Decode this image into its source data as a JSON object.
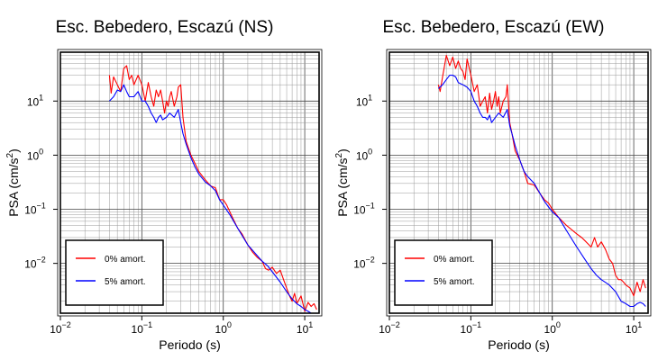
{
  "chart_data": [
    {
      "type": "line",
      "title": "Esc. Bebedero, Escazú (NS)",
      "xlabel": "Periodo (s)",
      "ylabel": "PSA (cm/s²)",
      "ylabel_base": "PSA (cm/s",
      "ylabel_sup": "2",
      "ylabel_end": ")",
      "xscale": "log",
      "yscale": "log",
      "xlim": [
        0.01,
        15
      ],
      "ylim": [
        0.0012,
        80
      ],
      "grid": true,
      "legend_position": "lower-left",
      "xticks": [
        {
          "base": "10",
          "exp": "−2",
          "value": 0.01
        },
        {
          "base": "10",
          "exp": "−1",
          "value": 0.1
        },
        {
          "base": "10",
          "exp": "0",
          "value": 1
        },
        {
          "base": "10",
          "exp": "1",
          "value": 10
        }
      ],
      "yticks": [
        {
          "base": "10",
          "exp": "−2",
          "value": 0.01
        },
        {
          "base": "10",
          "exp": "−1",
          "value": 0.1
        },
        {
          "base": "10",
          "exp": "0",
          "value": 1
        },
        {
          "base": "10",
          "exp": "1",
          "value": 10
        }
      ],
      "series": [
        {
          "name": "0% amort.",
          "color": "#ff0000",
          "x": [
            0.04,
            0.042,
            0.045,
            0.05,
            0.055,
            0.06,
            0.065,
            0.07,
            0.075,
            0.08,
            0.09,
            0.1,
            0.11,
            0.12,
            0.13,
            0.14,
            0.15,
            0.16,
            0.17,
            0.18,
            0.19,
            0.2,
            0.21,
            0.22,
            0.23,
            0.25,
            0.27,
            0.28,
            0.3,
            0.32,
            0.35,
            0.4,
            0.45,
            0.5,
            0.6,
            0.7,
            0.8,
            0.9,
            1.0,
            1.1,
            1.3,
            1.5,
            1.7,
            2.0,
            2.3,
            2.6,
            3.0,
            3.3,
            3.6,
            4.0,
            4.5,
            5.0,
            5.5,
            6.0,
            6.5,
            7.0,
            7.5,
            8.0,
            9.0,
            10.0,
            11.0,
            12.0,
            13.0,
            14.0
          ],
          "y": [
            30,
            14,
            28,
            20,
            15,
            40,
            45,
            25,
            30,
            20,
            30,
            20,
            10,
            22,
            12,
            8,
            16,
            12,
            16,
            10,
            6,
            10,
            8,
            12,
            15,
            8,
            12,
            18,
            20,
            5,
            1.8,
            1.0,
            0.7,
            0.5,
            0.35,
            0.27,
            0.25,
            0.15,
            0.15,
            0.12,
            0.07,
            0.045,
            0.035,
            0.022,
            0.016,
            0.013,
            0.011,
            0.008,
            0.0075,
            0.0085,
            0.0065,
            0.0075,
            0.005,
            0.0035,
            0.0025,
            0.002,
            0.0028,
            0.0018,
            0.0025,
            0.0013,
            0.0019,
            0.0016,
            0.0018,
            0.0014
          ]
        },
        {
          "name": "5% amort.",
          "color": "#0000ff",
          "x": [
            0.04,
            0.045,
            0.05,
            0.055,
            0.06,
            0.065,
            0.07,
            0.08,
            0.09,
            0.1,
            0.11,
            0.12,
            0.13,
            0.14,
            0.15,
            0.16,
            0.17,
            0.18,
            0.2,
            0.22,
            0.25,
            0.28,
            0.3,
            0.32,
            0.35,
            0.4,
            0.45,
            0.5,
            0.6,
            0.7,
            0.8,
            0.9,
            1.0,
            1.2,
            1.5,
            2.0,
            2.5,
            3.0,
            3.5,
            4.0,
            5.0,
            6.0,
            7.0,
            8.0,
            9.0,
            10.0,
            11.0,
            12.0,
            13.0,
            14.0
          ],
          "y": [
            10,
            12,
            16,
            15,
            20,
            15,
            12,
            12,
            15,
            10,
            10,
            8,
            6,
            5,
            4,
            5,
            5.5,
            4.5,
            5,
            6,
            5,
            7,
            4,
            2.5,
            1.6,
            0.9,
            0.6,
            0.45,
            0.32,
            0.27,
            0.22,
            0.15,
            0.12,
            0.08,
            0.045,
            0.022,
            0.015,
            0.011,
            0.009,
            0.007,
            0.0045,
            0.003,
            0.0022,
            0.0018,
            0.0016,
            0.0014,
            0.0013,
            0.0012,
            0.0012,
            0.0012
          ]
        }
      ]
    },
    {
      "type": "line",
      "title": "Esc. Bebedero, Escazú (EW)",
      "xlabel": "Periodo (s)",
      "ylabel": "PSA (cm/s²)",
      "ylabel_base": "PSA (cm/s",
      "ylabel_sup": "2",
      "ylabel_end": ")",
      "xscale": "log",
      "yscale": "log",
      "xlim": [
        0.01,
        15
      ],
      "ylim": [
        0.0012,
        80
      ],
      "grid": true,
      "legend_position": "lower-left",
      "xticks": [
        {
          "base": "10",
          "exp": "−2",
          "value": 0.01
        },
        {
          "base": "10",
          "exp": "−1",
          "value": 0.1
        },
        {
          "base": "10",
          "exp": "0",
          "value": 1
        },
        {
          "base": "10",
          "exp": "1",
          "value": 10
        }
      ],
      "yticks": [
        {
          "base": "10",
          "exp": "−2",
          "value": 0.01
        },
        {
          "base": "10",
          "exp": "−1",
          "value": 0.1
        },
        {
          "base": "10",
          "exp": "0",
          "value": 1
        },
        {
          "base": "10",
          "exp": "1",
          "value": 10
        }
      ],
      "series": [
        {
          "name": "0% amort.",
          "color": "#ff0000",
          "x": [
            0.04,
            0.042,
            0.045,
            0.05,
            0.055,
            0.06,
            0.065,
            0.07,
            0.075,
            0.08,
            0.085,
            0.09,
            0.1,
            0.11,
            0.12,
            0.13,
            0.14,
            0.15,
            0.16,
            0.17,
            0.18,
            0.19,
            0.2,
            0.21,
            0.22,
            0.23,
            0.25,
            0.27,
            0.28,
            0.3,
            0.32,
            0.35,
            0.4,
            0.45,
            0.5,
            0.6,
            0.7,
            0.8,
            0.9,
            1.0,
            1.2,
            1.5,
            2.0,
            2.3,
            2.6,
            3.0,
            3.3,
            3.6,
            4.0,
            4.5,
            5.0,
            5.5,
            6.0,
            6.5,
            7.0,
            7.5,
            8.0,
            9.0,
            10.0,
            11.0,
            12.0,
            13.0,
            14.0
          ],
          "y": [
            20,
            15,
            28,
            70,
            45,
            65,
            40,
            55,
            40,
            35,
            25,
            60,
            30,
            15,
            20,
            8,
            10,
            12,
            6,
            14,
            7,
            10,
            15,
            8,
            12,
            6,
            10,
            12,
            20,
            4,
            2.5,
            1.2,
            0.8,
            0.5,
            0.3,
            0.28,
            0.2,
            0.15,
            0.13,
            0.1,
            0.07,
            0.05,
            0.035,
            0.03,
            0.025,
            0.02,
            0.03,
            0.02,
            0.025,
            0.018,
            0.012,
            0.01,
            0.006,
            0.005,
            0.005,
            0.0045,
            0.004,
            0.0035,
            0.0025,
            0.0045,
            0.003,
            0.005,
            0.0035
          ]
        },
        {
          "name": "5% amort.",
          "color": "#0000ff",
          "x": [
            0.04,
            0.045,
            0.05,
            0.055,
            0.06,
            0.065,
            0.07,
            0.08,
            0.09,
            0.1,
            0.11,
            0.12,
            0.13,
            0.14,
            0.15,
            0.16,
            0.17,
            0.18,
            0.2,
            0.22,
            0.25,
            0.28,
            0.3,
            0.32,
            0.35,
            0.4,
            0.45,
            0.5,
            0.6,
            0.7,
            0.8,
            0.9,
            1.0,
            1.2,
            1.5,
            2.0,
            2.5,
            3.0,
            3.5,
            4.0,
            5.0,
            6.0,
            7.0,
            8.0,
            9.0,
            10.0,
            11.0,
            12.0,
            13.0,
            14.0
          ],
          "y": [
            17,
            20,
            25,
            30,
            30,
            28,
            22,
            20,
            18,
            15,
            10,
            8,
            6,
            5,
            5,
            4.5,
            5.5,
            4,
            5,
            6,
            5,
            7,
            3.5,
            2.5,
            1.5,
            0.8,
            0.5,
            0.4,
            0.3,
            0.2,
            0.14,
            0.11,
            0.09,
            0.07,
            0.04,
            0.02,
            0.012,
            0.008,
            0.006,
            0.005,
            0.004,
            0.003,
            0.002,
            0.0018,
            0.0016,
            0.0016,
            0.0018,
            0.0019,
            0.0018,
            0.0016
          ]
        }
      ]
    }
  ]
}
